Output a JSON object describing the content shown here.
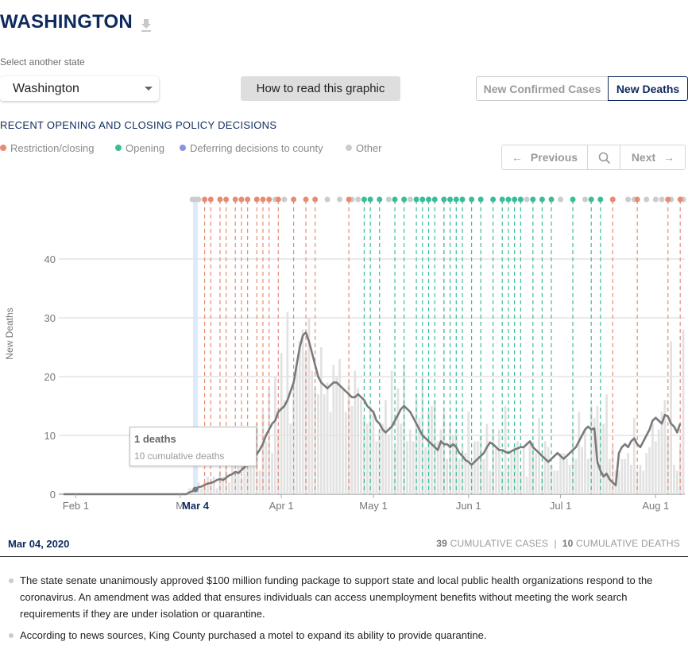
{
  "header": {
    "title": "WASHINGTON",
    "download_icon": "download-icon"
  },
  "state_select": {
    "label": "Select another state",
    "value": "Washington"
  },
  "how_to_button": "How to read this graphic",
  "toggle": {
    "cases_label": "New Confirmed Cases",
    "deaths_label": "New Deaths",
    "active": "deaths"
  },
  "policy": {
    "title": "RECENT OPENING AND CLOSING POLICY DECISIONS",
    "legend": [
      {
        "label": "Restriction/closing",
        "color": "#e88b73"
      },
      {
        "label": "Opening",
        "color": "#3bbd9a"
      },
      {
        "label": "Deferring decisions to county",
        "color": "#8a93e0"
      },
      {
        "label": "Other",
        "color": "#cccccc"
      }
    ]
  },
  "nav": {
    "previous": "Previous",
    "next": "Next"
  },
  "chart_data": {
    "type": "bar",
    "ylabel": "New Deaths",
    "ylim": [
      0,
      50
    ],
    "yticks": [
      0,
      10,
      20,
      30,
      40
    ],
    "x_ticks": [
      "Feb 1",
      "M",
      "Apr 1",
      "May 1",
      "Jun 1",
      "Jul 1",
      "Aug 1"
    ],
    "selected_label": "Mar 4",
    "series": [
      {
        "kind": "bars",
        "color": "#e2e2e2",
        "values": [
          0,
          0,
          0,
          0,
          0,
          0,
          0,
          0,
          0,
          0,
          0,
          0,
          0,
          0,
          0,
          0,
          0,
          0,
          0,
          0,
          0,
          0,
          0,
          0,
          0,
          0,
          0,
          0,
          0,
          0,
          0,
          0,
          0,
          0,
          0,
          0,
          0,
          0,
          0,
          0,
          0,
          1,
          1,
          1,
          2,
          1,
          2,
          3,
          2,
          3,
          1,
          4,
          3,
          5,
          2,
          6,
          4,
          6,
          3,
          8,
          5,
          10,
          6,
          12,
          4,
          14,
          9,
          18,
          7,
          20,
          11,
          24,
          16,
          31,
          12,
          19,
          22,
          26,
          28,
          24,
          30,
          21,
          18,
          17,
          25,
          17,
          19,
          14,
          22,
          20,
          23,
          18,
          14,
          19,
          15,
          21,
          18,
          16,
          13,
          12,
          15,
          14,
          9,
          11,
          12,
          16,
          10,
          21,
          8,
          18,
          12,
          22,
          9,
          11,
          9,
          17,
          13,
          20,
          8,
          14,
          15,
          16,
          9,
          11,
          14,
          6,
          12,
          10,
          11,
          6,
          8,
          7,
          14,
          5,
          9,
          9,
          10,
          6,
          12,
          4,
          11,
          8,
          11,
          4,
          15,
          5,
          7,
          8,
          9,
          4,
          8,
          3,
          9,
          9,
          7,
          13,
          4,
          9,
          8,
          5,
          4,
          4,
          7,
          7,
          6,
          5,
          11,
          6,
          14,
          8,
          11,
          6,
          15,
          13,
          15,
          12,
          12,
          17,
          6,
          8,
          4,
          4,
          6,
          6,
          7,
          5,
          13,
          4,
          5,
          4,
          7,
          8,
          12,
          9,
          11,
          14,
          16,
          10,
          26,
          5,
          4,
          8,
          28
        ]
      },
      {
        "kind": "line",
        "color": "#7a7a7a",
        "values": [
          0,
          0,
          0,
          0,
          0,
          0,
          0,
          0,
          0,
          0,
          0,
          0,
          0,
          0,
          0,
          0,
          0,
          0,
          0,
          0,
          0,
          0,
          0,
          0,
          0,
          0,
          0,
          0,
          0,
          0,
          0,
          0,
          0,
          0,
          0,
          0,
          0,
          0,
          0,
          0,
          0,
          0.3,
          0.5,
          0.8,
          1.2,
          1.3,
          1.6,
          1.8,
          1.9,
          2.1,
          2.4,
          2.6,
          2.4,
          2.8,
          3.2,
          3.4,
          3.8,
          3.6,
          4.1,
          4.6,
          5.0,
          5.6,
          6.0,
          6.8,
          7.6,
          8.6,
          10.0,
          11.0,
          12.0,
          12.5,
          14.0,
          14.5,
          15.0,
          16.0,
          17.5,
          19.0,
          22.0,
          25.0,
          27.0,
          27.5,
          26.0,
          24.0,
          22.0,
          20.0,
          19.0,
          18.5,
          18.0,
          18.5,
          19.0,
          19.0,
          18.5,
          18.0,
          17.5,
          17.0,
          16.5,
          16.5,
          17.0,
          16.5,
          16.0,
          15.0,
          14.5,
          14.0,
          12.5,
          12.0,
          11.0,
          10.5,
          11.0,
          11.5,
          12.5,
          13.5,
          14.5,
          15.0,
          14.5,
          14.0,
          13.0,
          12.0,
          11.0,
          10.0,
          9.5,
          9.0,
          8.5,
          8.0,
          7.5,
          9.0,
          8.5,
          8.5,
          8.0,
          8.5,
          8.0,
          7.0,
          6.5,
          5.8,
          5.5,
          5.0,
          5.5,
          6.0,
          6.5,
          7.0,
          8.0,
          8.8,
          8.5,
          8.0,
          7.5,
          7.5,
          7.2,
          7.0,
          7.3,
          7.6,
          7.8,
          8.0,
          8.0,
          8.5,
          9.0,
          8.0,
          7.5,
          7.0,
          6.5,
          6.0,
          5.5,
          6.0,
          6.5,
          7.0,
          6.5,
          6.0,
          6.5,
          7.0,
          7.5,
          8.0,
          9.0,
          10.0,
          11.0,
          11.5,
          11.0,
          11.2,
          5.5,
          4.0,
          3.0,
          3.5,
          2.5,
          2.0,
          1.5,
          7.0,
          8.0,
          8.5,
          8.0,
          9.0,
          9.5,
          8.5,
          8.0,
          9.0,
          10.0,
          11.0,
          12.5,
          13.0,
          12.5,
          12.0,
          13.5,
          13.2,
          12.0,
          11.5,
          10.5,
          12.0
        ]
      }
    ],
    "policy_events": {
      "restriction": [
        46,
        48,
        51,
        53,
        56,
        58,
        60,
        63,
        65,
        67,
        70,
        75,
        79,
        82,
        93,
        124
      ],
      "opening": [
        98,
        100,
        103,
        108,
        111,
        115,
        117,
        119,
        121,
        124,
        126,
        128,
        130,
        133,
        136,
        140,
        143,
        145,
        147,
        149,
        153,
        156,
        159,
        166,
        172,
        175
      ],
      "other": [
        42,
        43,
        44,
        69,
        72,
        86,
        90,
        94,
        96,
        106,
        113,
        151,
        162,
        170,
        179,
        184,
        186,
        190,
        193,
        195,
        198,
        202
      ],
      "late_restriction": [
        179,
        187,
        197,
        201
      ]
    }
  },
  "info": {
    "date": "Mar 04, 2020",
    "cases_count": "39",
    "cases_label": "CUMULATIVE CASES",
    "deaths_count": "10",
    "deaths_label": "CUMULATIVE DEATHS"
  },
  "tooltip": {
    "main": "1 deaths",
    "sub": "10 cumulative deaths"
  },
  "notes": [
    "The state senate unanimously approved $100 million funding package to support state and local public health organizations respond to the coronavirus. An amendment was added that ensures individuals can access unemployment benefits without meeting the work search requirements if they are under isolation or quarantine.",
    "According to news sources, King County purchased a motel to expand its ability to provide quarantine."
  ]
}
